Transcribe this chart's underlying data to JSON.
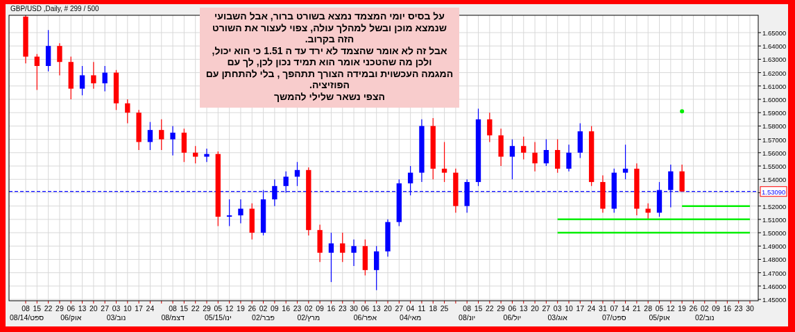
{
  "chart_data": {
    "type": "candlestick",
    "title": "GBP/USD ,Daily, # 299 / 500",
    "categories": [
      "08\n08/14/ספט",
      "15",
      "22",
      "29",
      "06\n06/אוק",
      "13",
      "20",
      "27",
      "03\n03/נוב",
      "10",
      "17",
      "24",
      null,
      "08\n08/דצמ",
      "15",
      "22",
      "29",
      "05\n05/15/ינו",
      "12",
      "19",
      "26",
      "02\n02/פבר",
      "09",
      "16",
      "23",
      "02\n02/מרץ",
      "09",
      "16",
      "23",
      "30",
      "06\n06/אפר",
      "13",
      "20",
      "27",
      "04\n04/מאי",
      "11",
      "18",
      "25",
      null,
      "08\n08/יונ",
      "15",
      "22",
      "29",
      "06\n06/יול",
      "13",
      "20",
      "27",
      "03\n03/אוג",
      "10",
      "17",
      "24",
      "31",
      "07\n07/ספט",
      "14",
      "21",
      "28",
      "05\n05/אוק",
      "12",
      "19",
      "26",
      "02\n02/נוב",
      "09",
      "16",
      "23",
      "30"
    ],
    "series": [
      {
        "ohlc": [
          [
            1.662,
            1.663,
            1.627,
            1.632
          ],
          [
            1.632,
            1.634,
            1.607,
            1.625
          ],
          [
            1.625,
            1.652,
            1.621,
            1.64
          ],
          [
            1.64,
            1.642,
            1.618,
            1.628
          ],
          [
            1.628,
            1.632,
            1.6,
            1.608
          ],
          [
            1.608,
            1.625,
            1.603,
            1.618
          ],
          [
            1.618,
            1.628,
            1.608,
            1.612
          ],
          [
            1.612,
            1.625,
            1.606,
            1.62
          ],
          [
            1.62,
            1.622,
            1.592,
            1.597
          ],
          [
            1.597,
            1.6,
            1.582,
            1.59
          ],
          [
            1.59,
            1.592,
            1.562,
            1.568
          ],
          [
            1.568,
            1.583,
            1.562,
            1.577
          ],
          [
            1.577,
            1.585,
            1.562,
            1.57
          ],
          [
            1.57,
            1.58,
            1.558,
            1.575
          ],
          [
            1.575,
            1.578,
            1.553,
            1.56
          ],
          [
            1.56,
            1.565,
            1.552,
            1.557
          ],
          [
            1.557,
            1.563,
            1.553,
            1.559
          ],
          [
            1.559,
            1.561,
            1.505,
            1.512
          ],
          [
            1.512,
            1.525,
            1.505,
            1.513
          ],
          [
            1.513,
            1.525,
            1.507,
            1.518
          ],
          [
            1.518,
            1.522,
            1.495,
            1.5
          ],
          [
            1.5,
            1.532,
            1.498,
            1.525
          ],
          [
            1.525,
            1.54,
            1.52,
            1.535
          ],
          [
            1.535,
            1.546,
            1.53,
            1.542
          ],
          [
            1.542,
            1.553,
            1.535,
            1.547
          ],
          [
            1.547,
            1.549,
            1.498,
            1.502
          ],
          [
            1.502,
            1.506,
            1.478,
            1.485
          ],
          [
            1.485,
            1.5,
            1.463,
            1.492
          ],
          [
            1.492,
            1.5,
            1.478,
            1.485
          ],
          [
            1.485,
            1.495,
            1.475,
            1.49
          ],
          [
            1.49,
            1.495,
            1.468,
            1.472
          ],
          [
            1.472,
            1.49,
            1.457,
            1.486
          ],
          [
            1.486,
            1.51,
            1.482,
            1.508
          ],
          [
            1.508,
            1.54,
            1.505,
            1.537
          ],
          [
            1.537,
            1.55,
            1.528,
            1.545
          ],
          [
            1.545,
            1.585,
            1.538,
            1.58
          ],
          [
            1.58,
            1.586,
            1.54,
            1.548
          ],
          [
            1.548,
            1.568,
            1.538,
            1.545
          ],
          [
            1.545,
            1.548,
            1.515,
            1.52
          ],
          [
            1.52,
            1.54,
            1.515,
            1.538
          ],
          [
            1.538,
            1.593,
            1.535,
            1.585
          ],
          [
            1.585,
            1.59,
            1.568,
            1.573
          ],
          [
            1.573,
            1.578,
            1.55,
            1.557
          ],
          [
            1.557,
            1.57,
            1.54,
            1.565
          ],
          [
            1.565,
            1.572,
            1.555,
            1.56
          ],
          [
            1.56,
            1.568,
            1.546,
            1.552
          ],
          [
            1.552,
            1.57,
            1.55,
            1.562
          ],
          [
            1.562,
            1.57,
            1.545,
            1.548
          ],
          [
            1.548,
            1.566,
            1.546,
            1.56
          ],
          [
            1.56,
            1.582,
            1.556,
            1.576
          ],
          [
            1.576,
            1.58,
            1.535,
            1.538
          ],
          [
            1.538,
            1.543,
            1.515,
            1.518
          ],
          [
            1.518,
            1.548,
            1.515,
            1.545
          ],
          [
            1.545,
            1.566,
            1.54,
            1.548
          ],
          [
            1.548,
            1.552,
            1.513,
            1.518
          ],
          [
            1.518,
            1.522,
            1.51,
            1.515
          ],
          [
            1.515,
            1.538,
            1.512,
            1.532
          ],
          [
            1.532,
            1.551,
            1.519,
            1.546
          ],
          [
            1.546,
            1.551,
            1.5309,
            1.5309
          ],
          null,
          null,
          null,
          null,
          null,
          null
        ],
        "colors": [
          "#ff0000",
          "#ff0000",
          "#0000ff",
          "#ff0000",
          "#ff0000",
          "#0000ff",
          "#ff0000",
          "#0000ff",
          "#ff0000",
          "#ff0000",
          "#ff0000",
          "#0000ff",
          "#ff0000",
          "#0000ff",
          "#ff0000",
          "#ff0000",
          "#0000ff",
          "#ff0000",
          "#0000ff",
          "#0000ff",
          "#ff0000",
          "#0000ff",
          "#0000ff",
          "#0000ff",
          "#0000ff",
          "#ff0000",
          "#ff0000",
          "#0000ff",
          "#ff0000",
          "#0000ff",
          "#ff0000",
          "#0000ff",
          "#0000ff",
          "#0000ff",
          "#0000ff",
          "#0000ff",
          "#ff0000",
          "#ff0000",
          "#ff0000",
          "#0000ff",
          "#0000ff",
          "#ff0000",
          "#ff0000",
          "#0000ff",
          "#ff0000",
          "#ff0000",
          "#0000ff",
          "#ff0000",
          "#0000ff",
          "#0000ff",
          "#ff0000",
          "#ff0000",
          "#0000ff",
          "#0000ff",
          "#ff0000",
          "#ff0000",
          "#0000ff",
          "#0000ff",
          "#ff0000",
          null,
          null,
          null,
          null,
          null,
          null
        ]
      },
      {
        "type": "line",
        "color": "#00ee00",
        "values": [
          null,
          null,
          null,
          null,
          null,
          null,
          null,
          null,
          null,
          null,
          null,
          null,
          null,
          null,
          null,
          null,
          null,
          null,
          null,
          null,
          null,
          null,
          null,
          null,
          null,
          null,
          null,
          null,
          null,
          null,
          null,
          null,
          null,
          null,
          null,
          null,
          null,
          null,
          null,
          null,
          null,
          null,
          null,
          null,
          null,
          null,
          null,
          null,
          null,
          null,
          null,
          null,
          null,
          null,
          null,
          null,
          null,
          null,
          1.52,
          1.52,
          1.52,
          1.52,
          1.52,
          1.52,
          1.52
        ]
      },
      {
        "type": "line",
        "color": "#00ee00",
        "values": [
          null,
          null,
          null,
          null,
          null,
          null,
          null,
          null,
          null,
          null,
          null,
          null,
          null,
          null,
          null,
          null,
          null,
          null,
          null,
          null,
          null,
          null,
          null,
          null,
          null,
          null,
          null,
          null,
          null,
          null,
          null,
          null,
          null,
          null,
          null,
          null,
          null,
          null,
          null,
          null,
          null,
          null,
          null,
          null,
          null,
          null,
          null,
          1.51,
          1.51,
          1.51,
          1.51,
          1.51,
          1.51,
          1.51,
          1.51,
          1.51,
          1.51,
          1.51,
          1.51,
          1.51,
          1.51,
          1.51,
          1.51,
          1.51,
          1.51
        ]
      },
      {
        "type": "line",
        "color": "#00ee00",
        "values": [
          null,
          null,
          null,
          null,
          null,
          null,
          null,
          null,
          null,
          null,
          null,
          null,
          null,
          null,
          null,
          null,
          null,
          null,
          null,
          null,
          null,
          null,
          null,
          null,
          null,
          null,
          null,
          null,
          null,
          null,
          null,
          null,
          null,
          null,
          null,
          null,
          null,
          null,
          null,
          null,
          null,
          null,
          null,
          null,
          null,
          null,
          null,
          1.5,
          1.5,
          1.5,
          1.5,
          1.5,
          1.5,
          1.5,
          1.5,
          1.5,
          1.5,
          1.5,
          1.5,
          1.5,
          1.5,
          1.5,
          1.5,
          1.5,
          1.5
        ]
      },
      {
        "type": "scatter",
        "color": "#00ee00",
        "values": [
          null,
          null,
          null,
          null,
          null,
          null,
          null,
          null,
          null,
          null,
          null,
          null,
          null,
          null,
          null,
          null,
          null,
          null,
          null,
          null,
          null,
          null,
          null,
          null,
          null,
          null,
          null,
          null,
          null,
          null,
          null,
          null,
          null,
          null,
          null,
          null,
          null,
          null,
          null,
          null,
          null,
          null,
          null,
          null,
          null,
          null,
          null,
          null,
          null,
          null,
          null,
          null,
          null,
          null,
          null,
          null,
          null,
          null,
          1.591,
          null,
          null,
          null,
          null,
          null,
          null
        ]
      }
    ],
    "ylim": [
      1.449,
      1.663
    ],
    "yticks": [
      {
        "value": 1.45,
        "label": "1.45000"
      },
      {
        "value": 1.46,
        "label": "1.46000"
      },
      {
        "value": 1.47,
        "label": "1.47000"
      },
      {
        "value": 1.48,
        "label": "1.48000"
      },
      {
        "value": 1.49,
        "label": "1.49000"
      },
      {
        "value": 1.5,
        "label": "1.50000"
      },
      {
        "value": 1.51,
        "label": "1.51000"
      },
      {
        "value": 1.52,
        "label": "1.52000"
      },
      {
        "value": 1.53,
        "label": null
      },
      {
        "value": 1.54,
        "label": "1.54000"
      },
      {
        "value": 1.55,
        "label": "1.55000"
      },
      {
        "value": 1.56,
        "label": "1.56000"
      },
      {
        "value": 1.57,
        "label": "1.57000"
      },
      {
        "value": 1.58,
        "label": "1.58000"
      },
      {
        "value": 1.59,
        "label": "1.59000"
      },
      {
        "value": 1.6,
        "label": "1.60000"
      },
      {
        "value": 1.61,
        "label": "1.61000"
      },
      {
        "value": 1.62,
        "label": "1.62000"
      },
      {
        "value": 1.63,
        "label": "1.63000"
      },
      {
        "value": 1.64,
        "label": "1.64000"
      },
      {
        "value": 1.65,
        "label": "1.65000"
      }
    ],
    "ref_lines": [
      {
        "axis": "y",
        "value": 1.5309,
        "label": "1.53090",
        "color": "#0000ff",
        "line_style": "dashed"
      }
    ],
    "grid": true,
    "annotations": [
      "על בסיס יומי המצמד נמצא בשורט ברור, אבל השבועי\nשנמצא מוכן ובשל למהלך עולה, צפוי לעצור את השורט\nהזה בקרוב.\nאבל זה לא אומר שהצמד לא ירד עד ה 1.51 כי הוא יכול,\nולכן מה שהטכני אומר הוא תמיד נכון לכן, לך עם\nהמגמה העכשוית ובמידה הצורך תתהפך , בלי להתחתן עם\nהפוזיציה.\nהצפי נשאר שלילי להמשך"
    ]
  }
}
